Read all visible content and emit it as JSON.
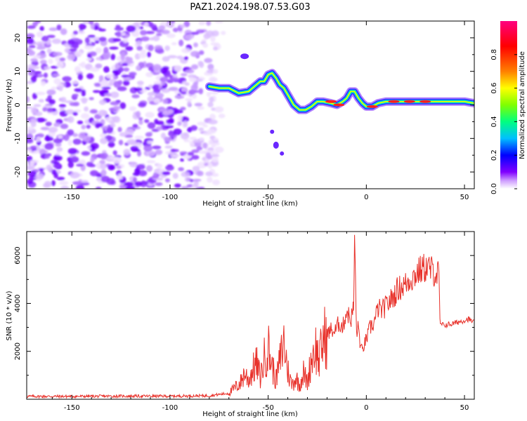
{
  "figure": {
    "title": "PAZ1.2024.198.07.53.G03"
  },
  "chart_data": [
    {
      "type": "heatmap",
      "xlabel": "Height of straight line (km)",
      "ylabel": "Frequency (Hz)",
      "xlim": [
        -173,
        55
      ],
      "ylim": [
        -25,
        25
      ],
      "xticks": [
        -150,
        -100,
        -50,
        0,
        50
      ],
      "yticks": [
        20,
        10,
        0,
        -10,
        -20
      ],
      "colorbar": {
        "label": "Normalized spectral amplitude",
        "range": [
          0,
          1
        ],
        "ticks": [
          "0.0",
          "0.2",
          "0.4",
          "0.6",
          "0.8"
        ],
        "colormap": [
          "#ffffff",
          "#cc99ff",
          "#8000ff",
          "#0000ff",
          "#00bfff",
          "#00ff80",
          "#80ff00",
          "#ffff00",
          "#ff8000",
          "#ff0000",
          "#ff0080"
        ]
      },
      "signal_trace": {
        "x": [
          -80,
          -75,
          -70,
          -65,
          -60,
          -57,
          -54,
          -52,
          -50,
          -48,
          -46,
          -44,
          -42,
          -40,
          -37,
          -34,
          -31,
          -28,
          -25,
          -22,
          -18,
          -15,
          -12,
          -10,
          -8,
          -6,
          -4,
          -2,
          0,
          3,
          6,
          10,
          15,
          20,
          25,
          30,
          35,
          40,
          45,
          50,
          55
        ],
        "y": [
          5.5,
          5,
          5,
          3.5,
          4,
          5.5,
          7,
          7,
          9,
          9.5,
          8,
          6,
          5,
          3,
          0,
          -1.5,
          -1.5,
          -0.5,
          1,
          1,
          0.5,
          0,
          1,
          2,
          4,
          4,
          2,
          0.5,
          -0.5,
          -0.5,
          0.5,
          1,
          1,
          1,
          1,
          1,
          1,
          1,
          1,
          1,
          0.5
        ]
      },
      "noise_region_x": [
        -173,
        -80
      ]
    },
    {
      "type": "line",
      "xlabel": "Height of straight line (km)",
      "ylabel": "SNR (10 * v/v)",
      "xlim": [
        -173,
        55
      ],
      "ylim": [
        0,
        7000
      ],
      "xticks": [
        -150,
        -100,
        -50,
        0,
        50
      ],
      "yticks": [
        2000,
        4000,
        6000
      ],
      "color": "#e8312a",
      "series": [
        {
          "x": [
            -173,
            -150,
            -125,
            -100,
            -80,
            -70,
            -64,
            -62,
            -60,
            -58,
            -56,
            -54,
            -52,
            -50,
            -48,
            -46,
            -44,
            -42,
            -40,
            -38,
            -36,
            -34,
            -32,
            -30,
            -28,
            -26,
            -24,
            -22,
            -20,
            -18,
            -16,
            -14,
            -12,
            -10,
            -8,
            -6.5,
            -6,
            -5,
            -4,
            -3,
            -2,
            -1,
            0,
            2,
            4,
            6,
            8,
            10,
            12,
            14,
            16,
            18,
            20,
            22,
            24,
            26,
            28,
            30,
            32,
            34,
            36,
            37,
            37.5,
            38,
            40,
            44,
            48,
            52,
            55
          ],
          "y": [
            120,
            120,
            130,
            130,
            150,
            250,
            700,
            1100,
            800,
            1200,
            1500,
            900,
            1700,
            2200,
            1400,
            800,
            1600,
            2400,
            1200,
            600,
            900,
            600,
            1100,
            700,
            1700,
            2200,
            1600,
            2500,
            2700,
            2900,
            2800,
            3200,
            3000,
            3700,
            3300,
            3800,
            6700,
            2800,
            3000,
            2200,
            2000,
            2300,
            2500,
            3000,
            3200,
            3800,
            3700,
            3900,
            4100,
            4300,
            4600,
            4700,
            4800,
            5000,
            5100,
            5300,
            5400,
            5500,
            5450,
            5350,
            5200,
            5250,
            3300,
            3100,
            3100,
            3150,
            3250,
            3350,
            3200
          ]
        }
      ]
    }
  ]
}
